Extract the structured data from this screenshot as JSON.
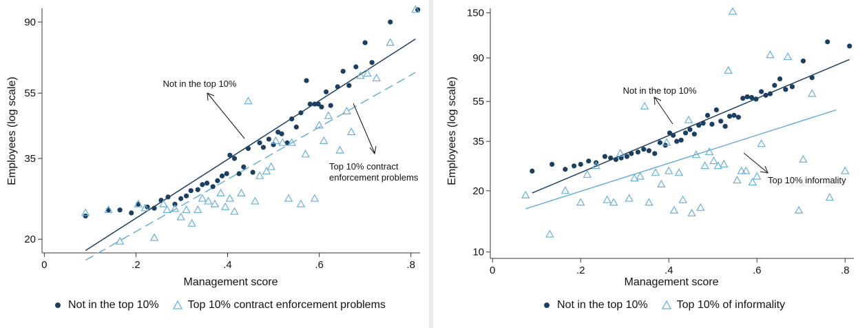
{
  "colors": {
    "dark_series": "#1c3f5f",
    "light_series": "#6aaed6",
    "axis": "#333333"
  },
  "chart_data": [
    {
      "type": "scatter",
      "title": "",
      "xlabel": "Management score",
      "ylabel": "Employees (log scale)",
      "y_scale": "log",
      "xlim": [
        -0.005,
        0.82
      ],
      "ylim": [
        18.2,
        99
      ],
      "x_ticks": [
        0,
        0.2,
        0.4,
        0.6,
        0.8
      ],
      "x_tick_labels": [
        "0",
        ".2",
        ".4",
        ".6",
        ".8"
      ],
      "y_ticks": [
        20,
        35,
        55,
        90
      ],
      "y_tick_labels": [
        "20",
        "35",
        "55",
        "90"
      ],
      "legend_position": "bottom",
      "series": [
        {
          "name": "Not in the top 10%",
          "marker": "dot",
          "x": [
            0.09,
            0.14,
            0.165,
            0.19,
            0.205,
            0.225,
            0.24,
            0.255,
            0.27,
            0.285,
            0.298,
            0.31,
            0.32,
            0.335,
            0.345,
            0.355,
            0.368,
            0.378,
            0.388,
            0.398,
            0.405,
            0.415,
            0.425,
            0.435,
            0.445,
            0.455,
            0.47,
            0.478,
            0.49,
            0.5,
            0.51,
            0.518,
            0.53,
            0.54,
            0.55,
            0.56,
            0.572,
            0.58,
            0.59,
            0.598,
            0.605,
            0.615,
            0.625,
            0.64,
            0.652,
            0.665,
            0.68,
            0.7,
            0.715,
            0.755,
            0.815
          ],
          "y": [
            23.5,
            24.5,
            24.5,
            24,
            25.5,
            25,
            24.8,
            26.2,
            26.8,
            25.5,
            26.5,
            27,
            28,
            28.2,
            29.2,
            29.5,
            28.8,
            30,
            31,
            31.5,
            35.8,
            35,
            31.5,
            33,
            37.5,
            31.8,
            39,
            37.8,
            40,
            38.5,
            42,
            41.5,
            39,
            46,
            43.5,
            48,
            60,
            51,
            51,
            51,
            50,
            55.5,
            50.5,
            57.5,
            64,
            58,
            66,
            78,
            68,
            90,
            98
          ],
          "fit": {
            "x0": 0.09,
            "x1": 0.81,
            "y0": 18.5,
            "y1": 80
          },
          "fit_style": "solid",
          "annotation": "Not in the top 10%"
        },
        {
          "name": "Top 10% contract enforcement problems",
          "marker": "hollow-triangle",
          "x": [
            0.09,
            0.14,
            0.165,
            0.205,
            0.22,
            0.24,
            0.26,
            0.268,
            0.285,
            0.298,
            0.31,
            0.322,
            0.335,
            0.345,
            0.358,
            0.372,
            0.385,
            0.395,
            0.405,
            0.415,
            0.43,
            0.445,
            0.46,
            0.47,
            0.485,
            0.495,
            0.505,
            0.52,
            0.533,
            0.54,
            0.56,
            0.57,
            0.59,
            0.6,
            0.61,
            0.62,
            0.645,
            0.66,
            0.67,
            0.69,
            0.705,
            0.725,
            0.755,
            0.81
          ],
          "y": [
            24,
            24.5,
            19.7,
            25.5,
            24.8,
            20.2,
            25.5,
            24.5,
            24.7,
            23.3,
            24.5,
            22.3,
            24.5,
            26.5,
            26,
            25.5,
            27.5,
            25,
            26.5,
            24.2,
            27.5,
            52,
            26,
            31,
            32,
            33,
            39.5,
            39,
            26.5,
            39,
            25.5,
            36,
            26.5,
            44,
            39.5,
            47,
            37,
            48.5,
            42,
            62,
            63,
            61,
            78,
            98
          ],
          "fit": {
            "x0": 0.09,
            "x1": 0.81,
            "y0": 17.3,
            "y1": 63.5
          },
          "fit_style": "dashed",
          "annotation": "Top 10% contract enforcement problems"
        }
      ]
    },
    {
      "type": "scatter",
      "title": "",
      "xlabel": "Management score",
      "ylabel": "Employees (log scale)",
      "y_scale": "log",
      "xlim": [
        -0.005,
        0.82
      ],
      "ylim": [
        9.3,
        158
      ],
      "x_ticks": [
        0,
        0.2,
        0.4,
        0.6,
        0.8
      ],
      "x_tick_labels": [
        "0",
        ".2",
        ".4",
        ".6",
        ".8"
      ],
      "y_ticks": [
        10,
        20,
        35,
        55,
        90,
        150
      ],
      "y_tick_labels": [
        "10",
        "20",
        "35",
        "55",
        "90",
        "150"
      ],
      "legend_position": "bottom",
      "series": [
        {
          "name": "Not in the top 10%",
          "marker": "dot",
          "x": [
            0.09,
            0.135,
            0.165,
            0.185,
            0.2,
            0.218,
            0.235,
            0.255,
            0.268,
            0.28,
            0.292,
            0.305,
            0.315,
            0.33,
            0.343,
            0.355,
            0.368,
            0.38,
            0.392,
            0.402,
            0.41,
            0.418,
            0.428,
            0.438,
            0.448,
            0.458,
            0.468,
            0.478,
            0.488,
            0.498,
            0.508,
            0.518,
            0.528,
            0.538,
            0.548,
            0.558,
            0.568,
            0.578,
            0.588,
            0.598,
            0.61,
            0.62,
            0.63,
            0.64,
            0.652,
            0.665,
            0.68,
            0.705,
            0.725,
            0.76,
            0.81
          ],
          "y": [
            25,
            27,
            25.5,
            26.5,
            27,
            28,
            27.5,
            29.5,
            29,
            28.5,
            29,
            29.5,
            30.5,
            31,
            32,
            31.5,
            30.5,
            34.5,
            33.5,
            38.5,
            37.5,
            35,
            35.5,
            38.5,
            40,
            38,
            42,
            43,
            47,
            42.5,
            50,
            44,
            41.5,
            46.5,
            47,
            46,
            57,
            58,
            57.5,
            56.5,
            61.5,
            59,
            60,
            66,
            71,
            63,
            65,
            87,
            72,
            108,
            103
          ],
          "fit": {
            "x0": 0.09,
            "x1": 0.81,
            "y0": 19.5,
            "y1": 88.5
          },
          "fit_style": "solid",
          "annotation": "Not in the top 10%"
        },
        {
          "name": "Top 10% of informality",
          "marker": "hollow-triangle",
          "x": [
            0.075,
            0.13,
            0.165,
            0.2,
            0.215,
            0.235,
            0.26,
            0.275,
            0.29,
            0.31,
            0.322,
            0.335,
            0.345,
            0.355,
            0.37,
            0.383,
            0.395,
            0.4,
            0.412,
            0.423,
            0.432,
            0.445,
            0.452,
            0.462,
            0.472,
            0.482,
            0.492,
            0.502,
            0.512,
            0.525,
            0.535,
            0.545,
            0.555,
            0.565,
            0.575,
            0.59,
            0.6,
            0.61,
            0.63,
            0.67,
            0.695,
            0.705,
            0.725,
            0.765,
            0.8
          ],
          "y": [
            19,
            12.2,
            20,
            17.5,
            24,
            26.5,
            18,
            17.5,
            30.5,
            18.3,
            23,
            23.5,
            52,
            17.5,
            24.5,
            21.5,
            34.5,
            25,
            16,
            24.5,
            18,
            44.5,
            15.5,
            30,
            16.5,
            26.5,
            31,
            28,
            26.5,
            27,
            78,
            152,
            22.5,
            25,
            25,
            22,
            23.5,
            34,
            93,
            91,
            16,
            28.5,
            60,
            18.5,
            25
          ],
          "fit": {
            "x0": 0.075,
            "x1": 0.78,
            "y0": 16.3,
            "y1": 50
          },
          "fit_style": "solid",
          "annotation": "Top 10% informality"
        }
      ]
    }
  ],
  "left": {
    "annotation_top": "Not in the top 10%",
    "annotation_bottom_line1": "Top 10% contract",
    "annotation_bottom_line2": "enforcement problems",
    "legend": {
      "item1": "Not in the top 10%",
      "item2": "Top 10% contract enforcement problems"
    }
  },
  "right": {
    "annotation_top": "Not in the top 10%",
    "annotation_bottom": "Top 10% informality",
    "legend": {
      "item1": "Not in the top 10%",
      "item2": "Top 10% of informality"
    }
  }
}
